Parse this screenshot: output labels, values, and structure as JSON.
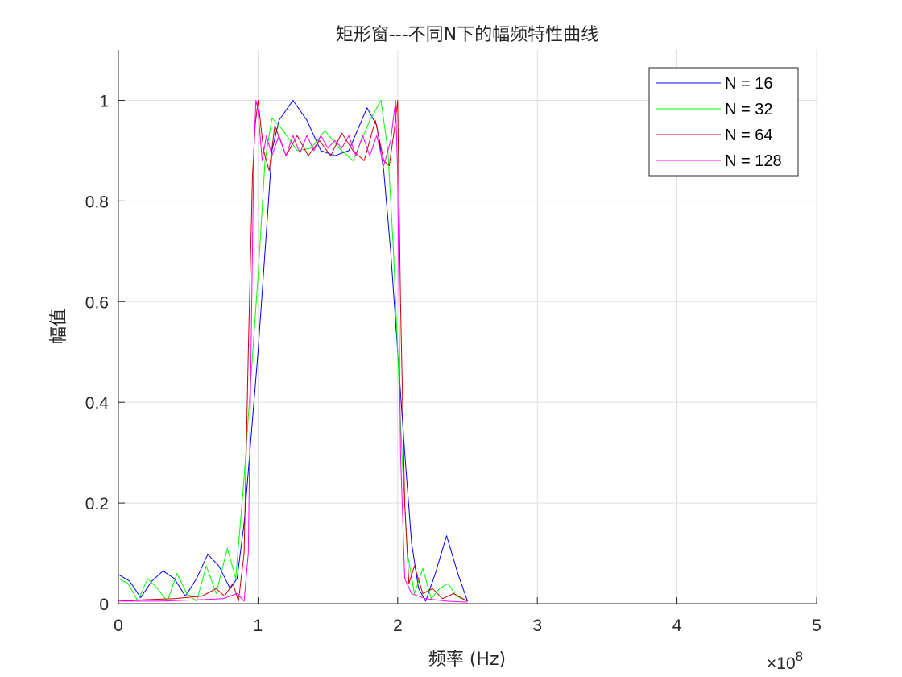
{
  "chart_data": {
    "type": "line",
    "title": "矩形窗---不同N下的幅频特性曲线",
    "xlabel": "频率 (Hz)",
    "ylabel": "幅值",
    "x_exponent_label": "×10",
    "x_exponent_power": "8",
    "xlim": [
      0,
      5
    ],
    "ylim": [
      0,
      1.1
    ],
    "xticks": [
      0,
      1,
      2,
      3,
      4,
      5
    ],
    "xtick_labels": [
      "0",
      "1",
      "2",
      "3",
      "4",
      "5"
    ],
    "yticks": [
      0,
      0.2,
      0.4,
      0.6,
      0.8,
      1
    ],
    "ytick_labels": [
      "0",
      "0.2",
      "0.4",
      "0.6",
      "0.8",
      "1"
    ],
    "grid": true,
    "legend_position": "top-right",
    "series": [
      {
        "name": "N = 16",
        "color": "#0000ff",
        "x": [
          0,
          0.08,
          0.16,
          0.24,
          0.32,
          0.4,
          0.48,
          0.56,
          0.64,
          0.72,
          0.8,
          0.85,
          0.9,
          0.95,
          1.0,
          1.05,
          1.1,
          1.15,
          1.25,
          1.35,
          1.45,
          1.55,
          1.65,
          1.78,
          1.85,
          1.9,
          1.95,
          2.0,
          2.05,
          2.1,
          2.15,
          2.2,
          2.27,
          2.35,
          2.43,
          2.5
        ],
        "y": [
          0.058,
          0.045,
          0.012,
          0.045,
          0.065,
          0.05,
          0.015,
          0.05,
          0.098,
          0.075,
          0.03,
          0.05,
          0.16,
          0.33,
          0.5,
          0.7,
          0.9,
          0.96,
          1.0,
          0.96,
          0.9,
          0.89,
          0.9,
          0.985,
          0.95,
          0.86,
          0.7,
          0.5,
          0.3,
          0.12,
          0.03,
          0.005,
          0.06,
          0.135,
          0.06,
          0.005
        ]
      },
      {
        "name": "N = 32",
        "color": "#00ff00",
        "x": [
          0,
          0.07,
          0.14,
          0.21,
          0.28,
          0.35,
          0.42,
          0.49,
          0.56,
          0.63,
          0.7,
          0.78,
          0.84,
          0.9,
          0.95,
          1.0,
          1.05,
          1.1,
          1.18,
          1.28,
          1.38,
          1.48,
          1.58,
          1.68,
          1.8,
          1.88,
          1.93,
          1.97,
          2.0,
          2.03,
          2.07,
          2.12,
          2.18,
          2.24,
          2.3,
          2.36,
          2.42,
          2.5
        ],
        "y": [
          0.05,
          0.04,
          0.005,
          0.05,
          0.03,
          0.005,
          0.06,
          0.02,
          0.005,
          0.075,
          0.02,
          0.11,
          0.05,
          0.25,
          0.45,
          0.65,
          0.88,
          0.965,
          0.94,
          0.9,
          0.905,
          0.94,
          0.905,
          0.88,
          0.96,
          1.0,
          0.9,
          0.7,
          0.5,
          0.3,
          0.1,
          0.02,
          0.07,
          0.01,
          0.03,
          0.04,
          0.015,
          0.005
        ]
      },
      {
        "name": "N = 64",
        "color": "#cc0000",
        "x": [
          0,
          0.2,
          0.4,
          0.6,
          0.7,
          0.76,
          0.82,
          0.86,
          0.9,
          0.93,
          0.96,
          0.98,
          1.0,
          1.04,
          1.08,
          1.12,
          1.2,
          1.28,
          1.36,
          1.44,
          1.52,
          1.6,
          1.68,
          1.76,
          1.84,
          1.9,
          1.94,
          1.98,
          2.0,
          2.02,
          2.05,
          2.08,
          2.12,
          2.18,
          2.25,
          2.32,
          2.4,
          2.5
        ],
        "y": [
          0.005,
          0.008,
          0.01,
          0.015,
          0.03,
          0.015,
          0.04,
          0.005,
          0.1,
          0.5,
          0.85,
          0.95,
          1.0,
          0.9,
          0.86,
          0.95,
          0.89,
          0.93,
          0.89,
          0.92,
          0.89,
          0.935,
          0.9,
          0.88,
          0.96,
          0.88,
          0.87,
          0.95,
          1.0,
          0.6,
          0.2,
          0.04,
          0.075,
          0.02,
          0.03,
          0.01,
          0.02,
          0.005
        ]
      },
      {
        "name": "N = 128",
        "color": "#ff00ff",
        "x": [
          0,
          0.3,
          0.6,
          0.75,
          0.85,
          0.9,
          0.93,
          0.95,
          0.97,
          0.985,
          1.0,
          1.03,
          1.06,
          1.1,
          1.15,
          1.2,
          1.25,
          1.3,
          1.35,
          1.4,
          1.45,
          1.5,
          1.55,
          1.6,
          1.65,
          1.7,
          1.75,
          1.8,
          1.85,
          1.9,
          1.95,
          1.985,
          2.0,
          2.02,
          2.05,
          2.1,
          2.2,
          2.35,
          2.5
        ],
        "y": [
          0.005,
          0.005,
          0.008,
          0.01,
          0.02,
          0.005,
          0.1,
          0.5,
          0.9,
          1.0,
          0.98,
          0.88,
          0.93,
          0.89,
          0.93,
          0.89,
          0.93,
          0.895,
          0.93,
          0.9,
          0.93,
          0.905,
          0.92,
          0.905,
          0.93,
          0.89,
          0.93,
          0.89,
          0.93,
          0.87,
          0.92,
          1.0,
          0.85,
          0.3,
          0.05,
          0.02,
          0.01,
          0.005,
          0.003
        ]
      }
    ]
  }
}
